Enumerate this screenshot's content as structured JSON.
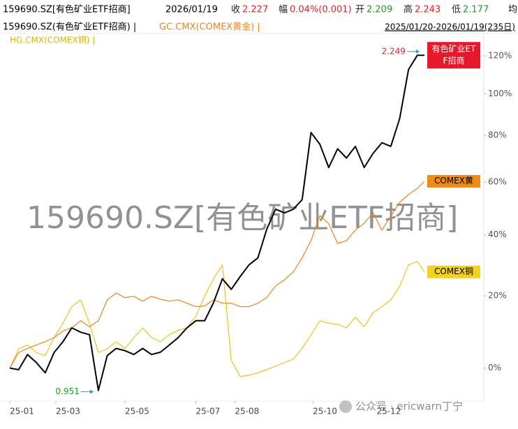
{
  "header": {
    "title": "159690.SZ[有色矿业ETF招商]",
    "date": "2026/01/19",
    "fields": [
      {
        "label": "收",
        "value": "2.227",
        "color": "#e0202a"
      },
      {
        "label": "幅",
        "value": "0.04%(0.001)",
        "color": "#e0202a"
      },
      {
        "label": "开",
        "value": "2.209",
        "color": "#1a9a2a"
      },
      {
        "label": "高",
        "value": "2.243",
        "color": "#e0202a"
      },
      {
        "label": "低",
        "value": "2.177",
        "color": "#1a9a2a"
      }
    ],
    "cut": "均"
  },
  "overlay": "公众号 · ericwarn丁宁",
  "chart_data": {
    "type": "line",
    "watermark": "159690.SZ[有色矿业ETF招商]",
    "date_range": "2025/01/20-2026/01/19(235日)",
    "yscale": "log",
    "x": [
      0,
      5,
      10,
      15,
      20,
      25,
      30,
      35,
      40,
      45,
      50,
      55,
      60,
      65,
      70,
      75,
      80,
      85,
      90,
      95,
      100,
      105,
      110,
      115,
      120,
      125,
      130,
      135,
      140,
      145,
      150,
      155,
      160,
      165,
      170,
      175,
      180,
      185,
      190,
      195,
      200,
      205,
      210,
      215,
      220,
      225,
      230,
      234
    ],
    "xlim": [
      0,
      234
    ],
    "xticks": [
      {
        "value": 0,
        "label": "25-01"
      },
      {
        "value": 26,
        "label": "25-03"
      },
      {
        "value": 65,
        "label": "25-05"
      },
      {
        "value": 105,
        "label": "25-07"
      },
      {
        "value": 127,
        "label": "25-08"
      },
      {
        "value": 171,
        "label": "25-10"
      },
      {
        "value": 207,
        "label": "25-12"
      }
    ],
    "ylim": [
      -8,
      130
    ],
    "yticks": [
      {
        "value": 0,
        "label": "0%"
      },
      {
        "value": 20,
        "label": "20%"
      },
      {
        "value": 40,
        "label": "40%"
      },
      {
        "value": 60,
        "label": "60%"
      },
      {
        "value": 80,
        "label": "80%"
      },
      {
        "value": 100,
        "label": "100%"
      },
      {
        "value": 120,
        "label": "120%"
      }
    ],
    "series": [
      {
        "name": "159690.SZ(有色矿业ETF招商) |",
        "tag": "有色矿业ETF招商",
        "color": "#000000",
        "tag_color": "#e8182c",
        "tag_text_color": "#ffffff",
        "values": [
          0,
          -0.4,
          3.5,
          1.4,
          -1.2,
          4.0,
          6.9,
          10.7,
          9.5,
          8.8,
          -5.5,
          3.2,
          5.1,
          4.5,
          3.5,
          5.1,
          3.5,
          4.1,
          6.0,
          8.0,
          10.7,
          12.7,
          12.7,
          18.0,
          25.3,
          22.0,
          26.0,
          29.8,
          32.1,
          42.0,
          49.4,
          48.0,
          49.4,
          53.0,
          81.3,
          76.0,
          66.0,
          74.0,
          70.0,
          75.1,
          66.0,
          72.0,
          76.7,
          75.1,
          87.8,
          112.6,
          120.4,
          120.4
        ]
      },
      {
        "name": "GC.CMX(COMEX黄金) |",
        "tag": "COMEX黄",
        "color": "#e8841a",
        "tag_color": "#ef8a12",
        "tag_text_color": "#000000",
        "values": [
          0,
          4.0,
          5.1,
          6.0,
          6.9,
          8.0,
          9.8,
          10.7,
          12.7,
          11.0,
          12.7,
          18.8,
          20.9,
          19.5,
          19.9,
          18.4,
          19.9,
          19.0,
          18.4,
          18.8,
          17.8,
          16.8,
          17.0,
          18.8,
          17.8,
          17.8,
          16.8,
          16.8,
          17.8,
          19.5,
          23.1,
          25.0,
          27.5,
          32.1,
          38.0,
          47.0,
          44.0,
          37.0,
          38.0,
          41.7,
          44.2,
          48.0,
          41.7,
          46.8,
          52.0,
          55.0,
          57.5,
          60.3
        ]
      },
      {
        "name": "HG.CMX(COMEX铜) |",
        "tag": "COMEX铜",
        "color": "#e8c41e",
        "tag_color": "#f3d21e",
        "tag_text_color": "#000000",
        "values": [
          0,
          5.0,
          6.0,
          4.0,
          3.2,
          8.0,
          12.0,
          16.8,
          18.8,
          12.0,
          4.0,
          5.0,
          6.9,
          5.1,
          8.0,
          10.7,
          8.0,
          6.9,
          8.8,
          10.0,
          10.7,
          14.0,
          20.0,
          25.3,
          29.8,
          2.0,
          -2.1,
          -1.8,
          -1.2,
          -0.4,
          0.5,
          1.4,
          2.3,
          5.1,
          8.8,
          12.7,
          12.0,
          11.7,
          10.7,
          13.7,
          11.0,
          15.0,
          16.8,
          18.8,
          23.0,
          29.8,
          30.9,
          27.5
        ]
      }
    ],
    "annotations": [
      {
        "text": "2.249",
        "x": 232,
        "y": 122.5,
        "color": "#e0202a"
      },
      {
        "text": "0.951",
        "x": 48,
        "y": -5.8,
        "color": "#1a9a2a"
      }
    ]
  }
}
